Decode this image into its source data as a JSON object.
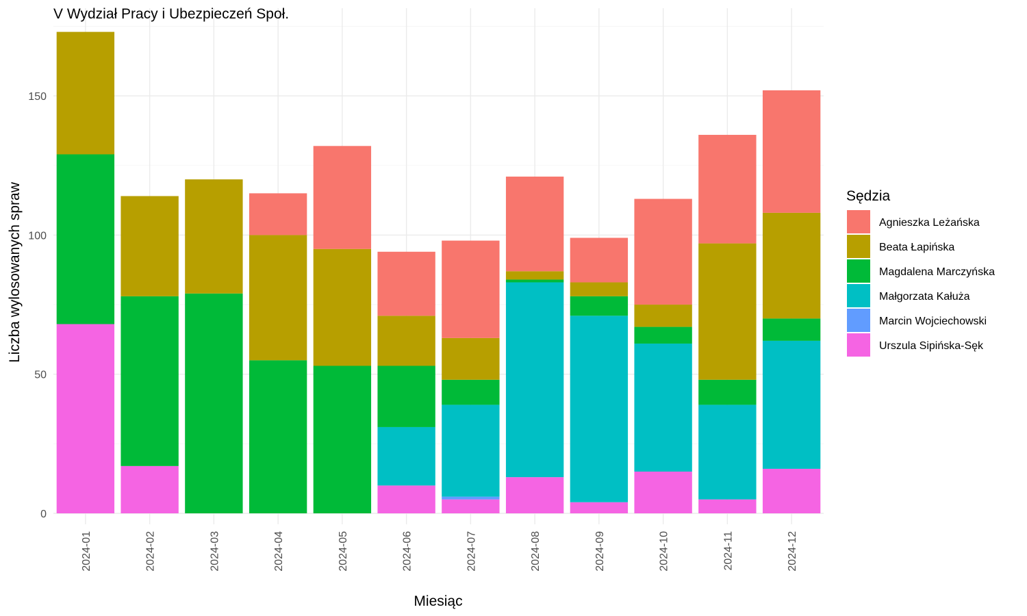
{
  "chart_data": {
    "type": "bar",
    "stacked": true,
    "title": "V Wydział Pracy i Ubezpieczeń Społ.",
    "xlabel": "Miesiąc",
    "ylabel": "Liczba wylosowanych spraw",
    "ylim": [
      0,
      175
    ],
    "yticks": [
      0,
      50,
      100,
      150
    ],
    "grid": true,
    "legend_title": "Sędzia",
    "legend_position": "right",
    "categories": [
      "2024-01",
      "2024-02",
      "2024-03",
      "2024-04",
      "2024-05",
      "2024-06",
      "2024-07",
      "2024-08",
      "2024-09",
      "2024-10",
      "2024-11",
      "2024-12"
    ],
    "series": [
      {
        "name": "Agnieszka Leżańska",
        "color": "#F8766D",
        "values": [
          0,
          0,
          0,
          15,
          37,
          23,
          35,
          34,
          16,
          38,
          39,
          44
        ]
      },
      {
        "name": "Beata Łapińska",
        "color": "#B79F00",
        "values": [
          44,
          36,
          41,
          45,
          42,
          18,
          15,
          3,
          5,
          8,
          49,
          38
        ]
      },
      {
        "name": "Magdalena Marczyńska",
        "color": "#00BA38",
        "values": [
          61,
          61,
          79,
          55,
          53,
          22,
          9,
          1,
          7,
          6,
          9,
          8
        ]
      },
      {
        "name": "Małgorzata Kałuża",
        "color": "#00BFC4",
        "values": [
          0,
          0,
          0,
          0,
          0,
          21,
          33,
          70,
          67,
          46,
          34,
          46
        ]
      },
      {
        "name": "Marcin Wojciechowski",
        "color": "#619CFF",
        "values": [
          0,
          0,
          0,
          0,
          0,
          0,
          1,
          0,
          0,
          0,
          0,
          0
        ]
      },
      {
        "name": "Urszula Sipińska-Sęk",
        "color": "#F564E3",
        "values": [
          68,
          17,
          0,
          0,
          0,
          10,
          5,
          13,
          4,
          15,
          5,
          16
        ]
      }
    ]
  }
}
